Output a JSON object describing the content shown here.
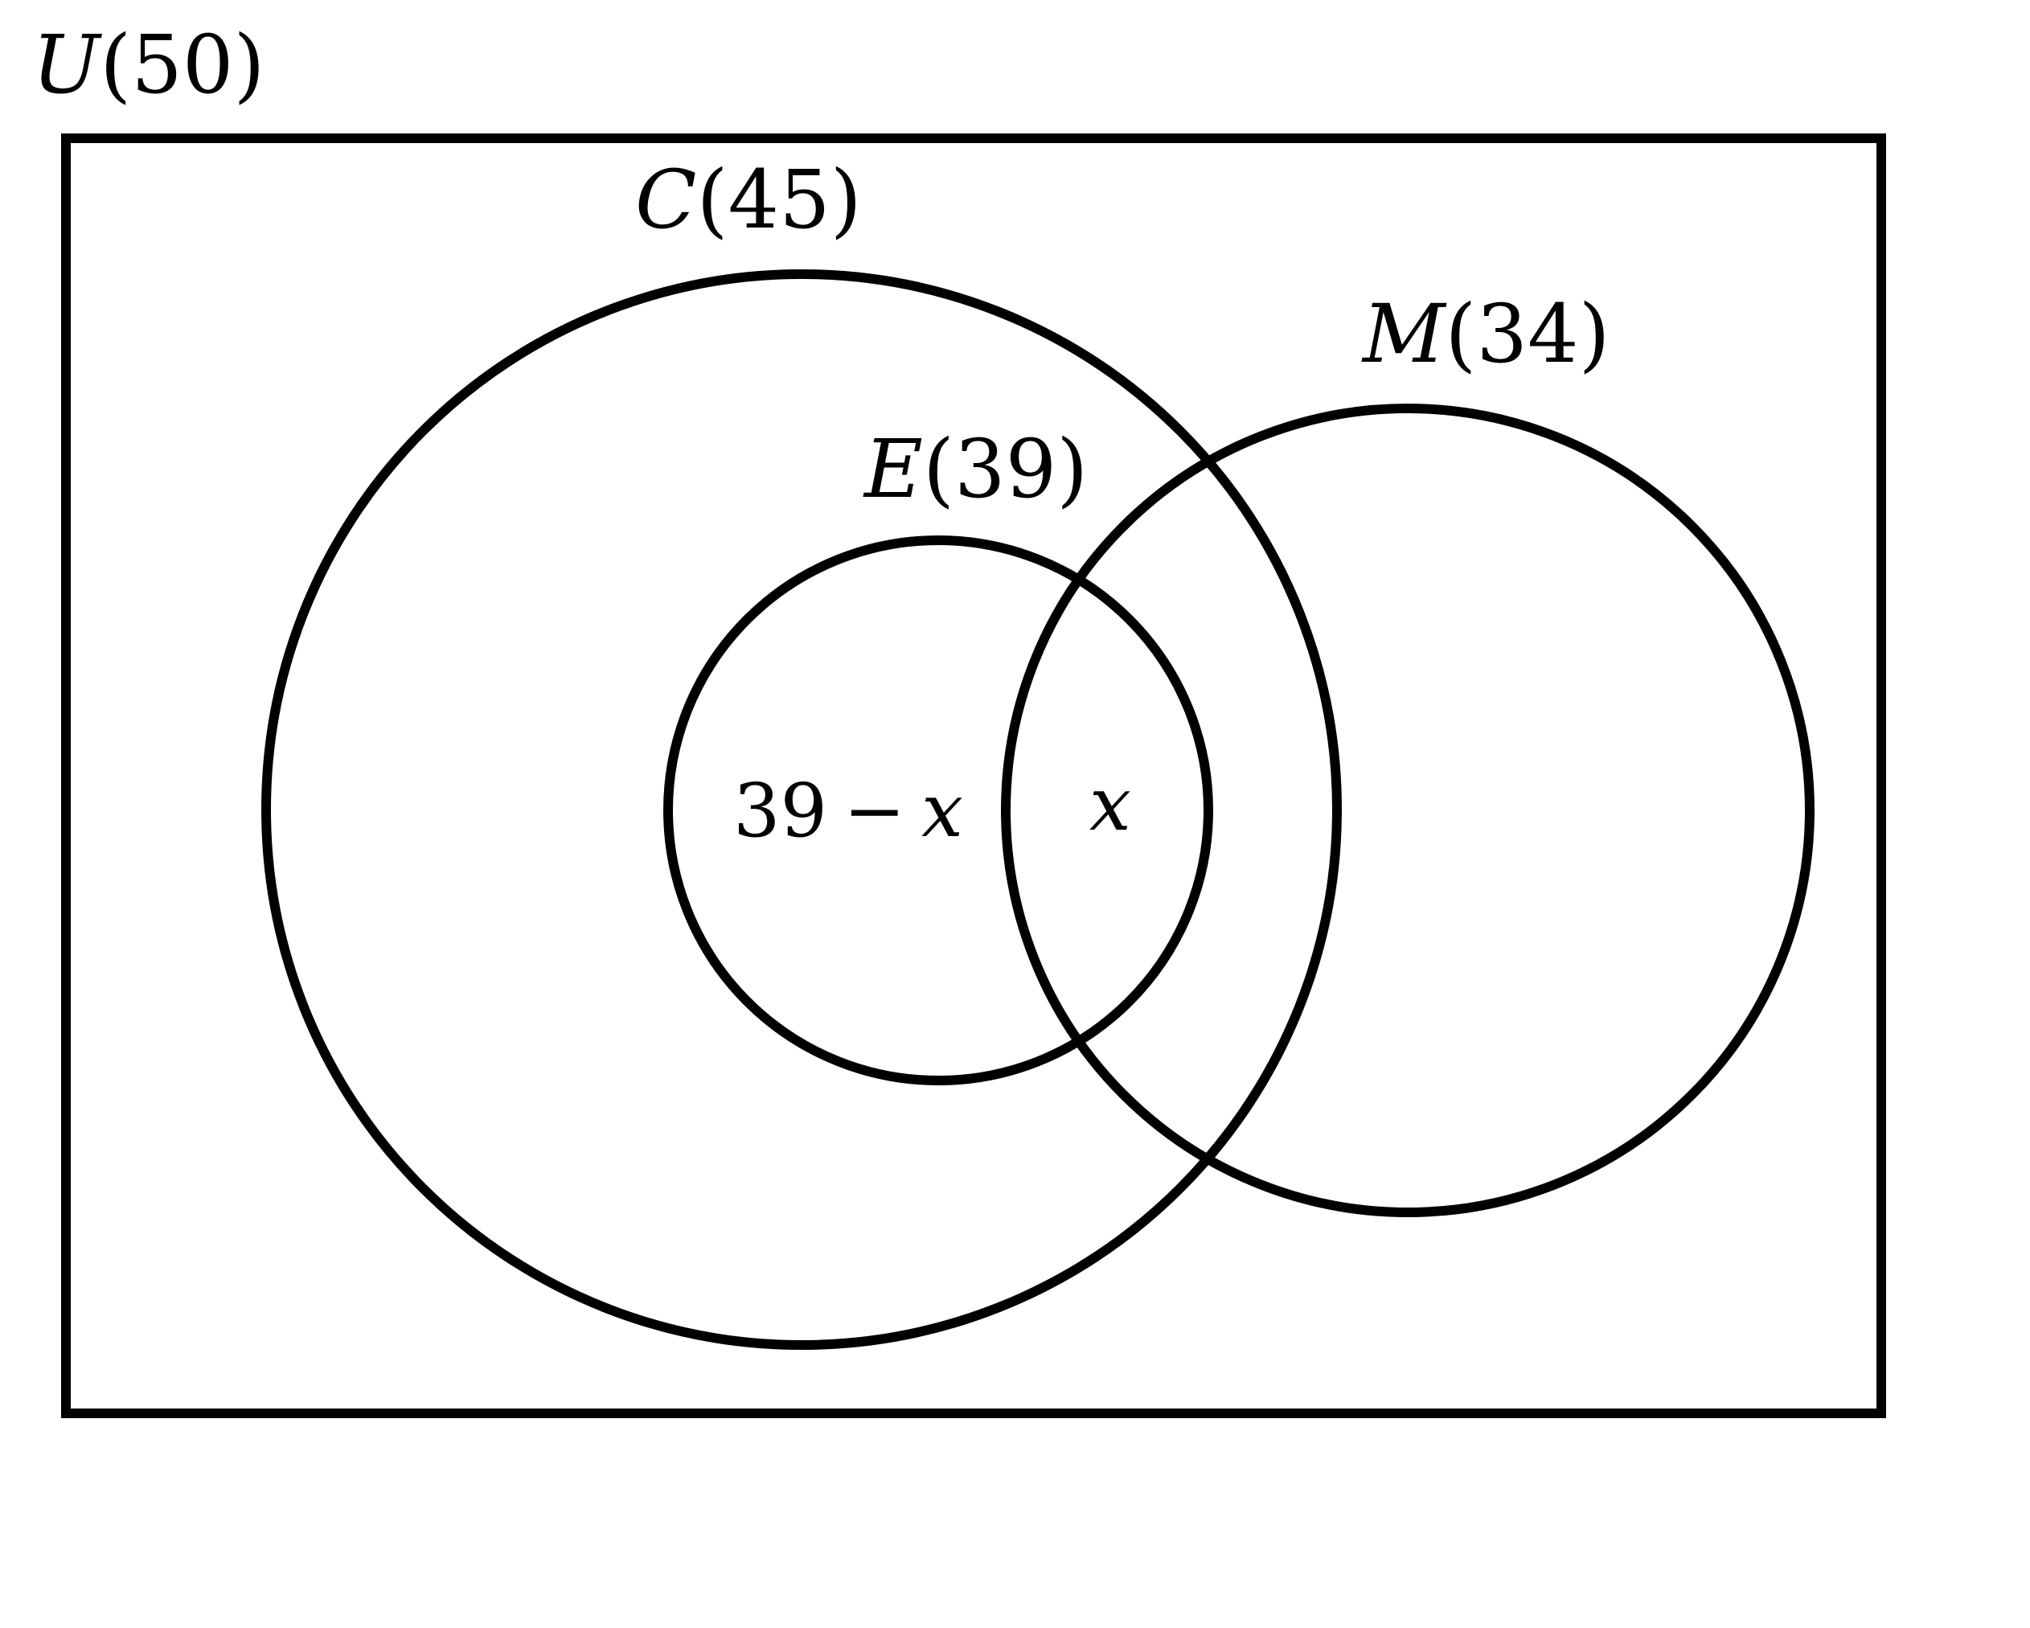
{
  "universe": {
    "symbol": "U",
    "count_text": "(50)"
  },
  "sets": [
    {
      "id": "C",
      "symbol": "C",
      "count_text": "(45)"
    },
    {
      "id": "E",
      "symbol": "E",
      "count_text": "(39)"
    },
    {
      "id": "M",
      "symbol": "M",
      "count_text": "(34)"
    }
  ],
  "regions": {
    "e_only": {
      "number": "39",
      "operator": "−",
      "variable": "x"
    },
    "e_and_m": {
      "variable": "x"
    }
  },
  "colors": {
    "stroke": "#000000",
    "background": "#ffffff"
  }
}
